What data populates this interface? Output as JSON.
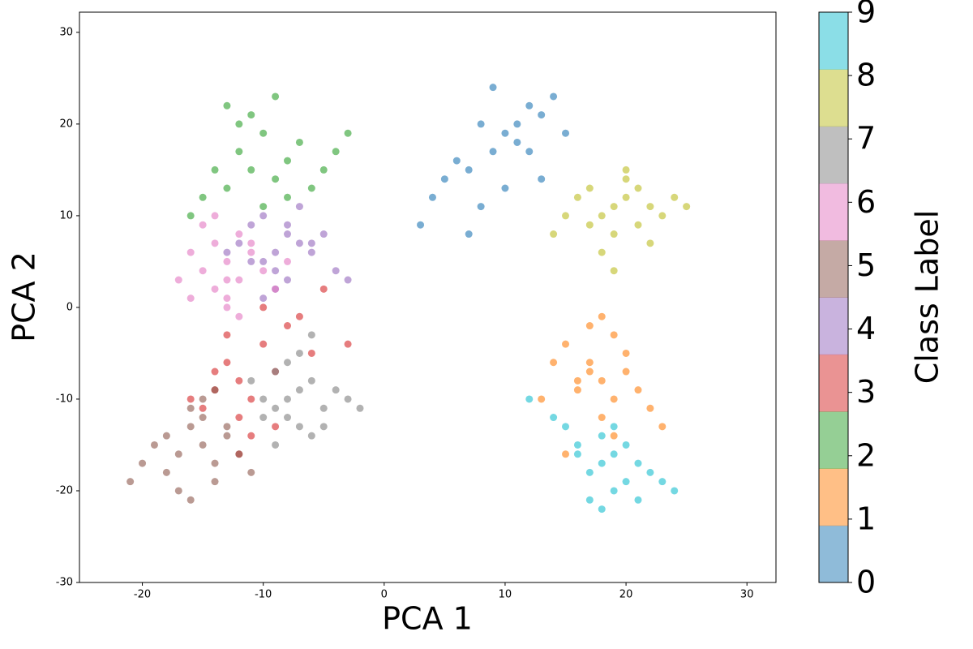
{
  "chart_data": {
    "type": "scatter",
    "xlabel": "PCA 1",
    "ylabel": "PCA 2",
    "xlim": [
      -25.2,
      32.4
    ],
    "ylim": [
      -30,
      32.2
    ],
    "xticks": [
      -20,
      -10,
      0,
      10,
      20,
      30
    ],
    "yticks": [
      -30,
      -20,
      -10,
      0,
      10,
      20,
      30
    ],
    "point_alpha": 0.6,
    "series": [
      {
        "color": "#1f77b4",
        "x": [
          10,
          8,
          12,
          9,
          11,
          7,
          13,
          6,
          10,
          14,
          5,
          8,
          12,
          3,
          9,
          11,
          15,
          4,
          7,
          13
        ],
        "y": [
          19,
          20,
          22,
          17,
          18,
          15,
          21,
          16,
          13,
          23,
          14,
          11,
          17,
          9,
          24,
          20,
          19,
          12,
          8,
          14
        ]
      },
      {
        "color": "#ff7f0e",
        "x": [
          18,
          17,
          19,
          16,
          20,
          15,
          18,
          21,
          14,
          17,
          19,
          22,
          16,
          20,
          13,
          18,
          23,
          15,
          19,
          17
        ],
        "y": [
          -8,
          -6,
          -10,
          -9,
          -7,
          -4,
          -12,
          -9,
          -6,
          -2,
          -14,
          -11,
          -8,
          -5,
          -10,
          -1,
          -13,
          -16,
          -3,
          -7
        ]
      },
      {
        "color": "#2ca02c",
        "x": [
          -11,
          -12,
          -9,
          -13,
          -10,
          -8,
          -14,
          -7,
          -11,
          -15,
          -6,
          -10,
          -12,
          -5,
          -9,
          -16,
          -4,
          -13,
          -8,
          -3
        ],
        "y": [
          15,
          17,
          14,
          13,
          19,
          16,
          15,
          18,
          21,
          12,
          13,
          11,
          20,
          15,
          23,
          10,
          17,
          22,
          12,
          19
        ]
      },
      {
        "color": "#d62728",
        "x": [
          -12,
          -13,
          -11,
          -14,
          -10,
          -12,
          -9,
          -15,
          -8,
          -11,
          -13,
          -6,
          -10,
          -14,
          -5,
          -12,
          -7,
          -3,
          -16,
          -9
        ],
        "y": [
          -8,
          -6,
          -10,
          -9,
          -4,
          -12,
          -7,
          -11,
          -2,
          -14,
          -3,
          -5,
          0,
          -7,
          2,
          -16,
          -1,
          -4,
          -10,
          -13
        ]
      },
      {
        "color": "#9467bd",
        "x": [
          -9,
          -8,
          -10,
          -7,
          -11,
          -9,
          -6,
          -10,
          -8,
          -12,
          -5,
          -9,
          -7,
          -11,
          -4,
          -8,
          -10,
          -6,
          -13,
          -3
        ],
        "y": [
          6,
          8,
          5,
          7,
          9,
          4,
          6,
          10,
          3,
          7,
          8,
          2,
          11,
          5,
          4,
          9,
          1,
          7,
          6,
          3
        ]
      },
      {
        "color": "#8c564b",
        "x": [
          -15,
          -16,
          -14,
          -17,
          -15,
          -13,
          -18,
          -16,
          -14,
          -19,
          -12,
          -17,
          -15,
          -20,
          -13,
          -16,
          -21,
          -14,
          -18,
          -11
        ],
        "y": [
          -15,
          -13,
          -17,
          -16,
          -12,
          -14,
          -18,
          -11,
          -19,
          -15,
          -16,
          -20,
          -10,
          -17,
          -13,
          -21,
          -19,
          -9,
          -14,
          -18
        ]
      },
      {
        "color": "#e377c2",
        "x": [
          -13,
          -14,
          -12,
          -15,
          -11,
          -13,
          -16,
          -12,
          -14,
          -10,
          -15,
          -13,
          -11,
          -17,
          -9,
          -14,
          -12,
          -16,
          -8,
          -13
        ],
        "y": [
          5,
          7,
          3,
          4,
          6,
          1,
          6,
          8,
          2,
          4,
          9,
          0,
          7,
          3,
          2,
          10,
          -1,
          1,
          5,
          3
        ]
      },
      {
        "color": "#7f7f7f",
        "x": [
          -8,
          -7,
          -9,
          -6,
          -8,
          -10,
          -7,
          -5,
          -9,
          -6,
          -8,
          -4,
          -10,
          -7,
          -3,
          -9,
          -5,
          -11,
          -6,
          -2
        ],
        "y": [
          -10,
          -9,
          -11,
          -8,
          -12,
          -10,
          -13,
          -11,
          -7,
          -14,
          -6,
          -9,
          -12,
          -5,
          -10,
          -15,
          -13,
          -8,
          -3,
          -11
        ]
      },
      {
        "color": "#bcbd22",
        "x": [
          19,
          20,
          18,
          21,
          17,
          22,
          19,
          16,
          20,
          23,
          18,
          15,
          21,
          24,
          17,
          19,
          22,
          14,
          20,
          25
        ],
        "y": [
          11,
          12,
          10,
          13,
          9,
          11,
          8,
          12,
          14,
          10,
          6,
          10,
          9,
          12,
          13,
          4,
          7,
          8,
          15,
          11
        ]
      },
      {
        "color": "#17becf",
        "x": [
          18,
          19,
          17,
          20,
          16,
          21,
          18,
          15,
          19,
          22,
          17,
          14,
          20,
          23,
          16,
          18,
          12,
          21,
          24,
          19
        ],
        "y": [
          -17,
          -16,
          -18,
          -19,
          -15,
          -17,
          -14,
          -13,
          -20,
          -18,
          -21,
          -12,
          -15,
          -19,
          -16,
          -22,
          -10,
          -21,
          -20,
          -13
        ]
      }
    ],
    "colorbar": {
      "label": "Class Label",
      "lim": [
        0,
        9
      ],
      "ticks": [
        0,
        1,
        2,
        3,
        4,
        5,
        6,
        7,
        8,
        9
      ],
      "alpha": 0.5,
      "colors": [
        "#1f77b4",
        "#ff7f0e",
        "#2ca02c",
        "#d62728",
        "#9467bd",
        "#8c564b",
        "#e377c2",
        "#7f7f7f",
        "#bcbd22",
        "#17becf"
      ]
    }
  }
}
